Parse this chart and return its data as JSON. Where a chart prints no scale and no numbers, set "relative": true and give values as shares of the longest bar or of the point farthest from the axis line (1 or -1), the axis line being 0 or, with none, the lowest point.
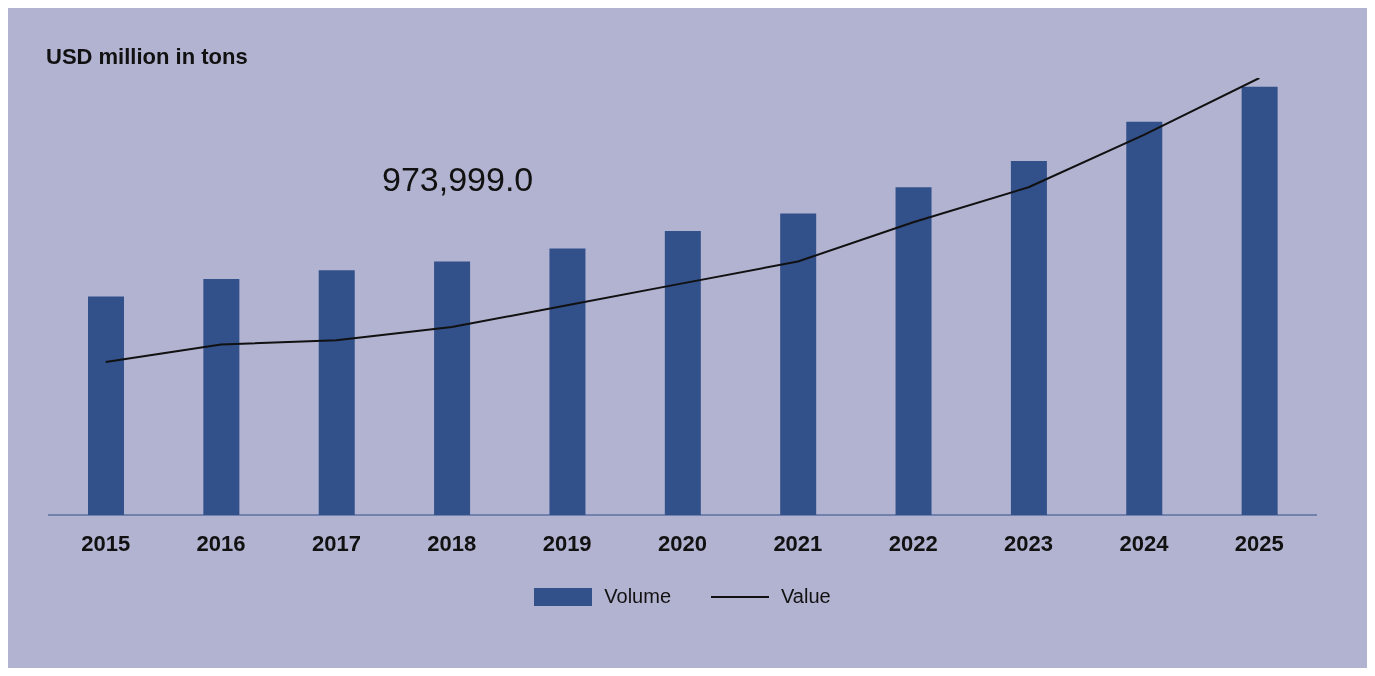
{
  "chart_data": {
    "type": "bar",
    "title": "USD million in tons",
    "relative": true,
    "categories": [
      "2015",
      "2016",
      "2017",
      "2018",
      "2019",
      "2020",
      "2021",
      "2022",
      "2023",
      "2024",
      "2025"
    ],
    "series": [
      {
        "name": "Volume",
        "color": "#32508a",
        "values": [
          0.5,
          0.54,
          0.56,
          0.58,
          0.61,
          0.65,
          0.69,
          0.75,
          0.81,
          0.9,
          0.98
        ]
      },
      {
        "name": "Value",
        "type": "line",
        "color": "#111111",
        "values": [
          0.35,
          0.39,
          0.4,
          0.43,
          0.48,
          0.53,
          0.58,
          0.67,
          0.75,
          0.87,
          1.0
        ]
      }
    ],
    "annotations": [
      "973,999.0"
    ],
    "grid": false,
    "legend": "bottom",
    "marker": "none",
    "line_style": "solid"
  }
}
